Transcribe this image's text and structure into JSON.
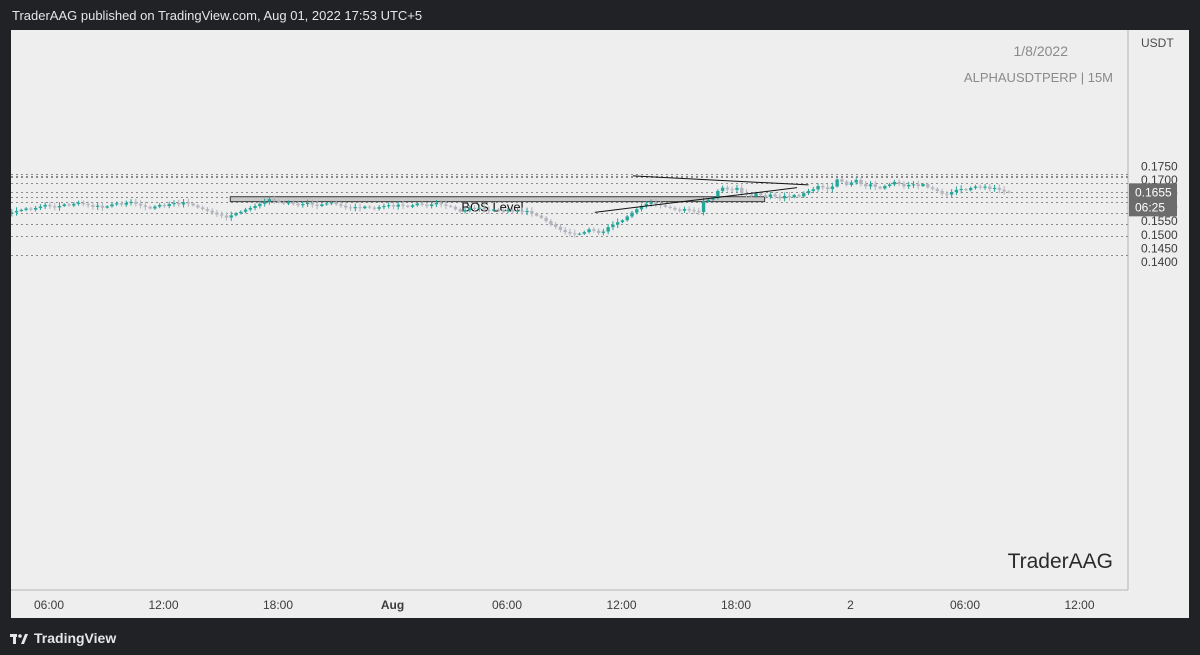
{
  "header": {
    "published_text": "TraderAAG published on TradingView.com, Aug 01, 2022 17:53 UTC+5"
  },
  "footer": {
    "brand": "TradingView"
  },
  "colors": {
    "up": "#26a69a",
    "down": "#b2b5be",
    "background": "#eeeeee",
    "frame": "#202226",
    "grid": "#8a8a8a",
    "bos_box": "#c8c8c8",
    "price_tag": "#6c6c6c"
  },
  "chart_data": {
    "type": "candlestick",
    "symbol_line": "ALPHAUSDTPERP | 15M",
    "date_line": "1/8/2022",
    "watermark": "TraderAAG",
    "axis_currency": "USDT",
    "ylim": [
      0.14,
      0.173
    ],
    "y_ticks": [
      "0.1750",
      "0.1700",
      "0.1650",
      "0.1600",
      "0.1550",
      "0.1500",
      "0.1450",
      "0.1400"
    ],
    "x_ticks": [
      "06:00",
      "12:00",
      "18:00",
      "Aug",
      "06:00",
      "12:00",
      "18:00",
      "2",
      "06:00",
      "12:00"
    ],
    "x_tick_hours": [
      6,
      12,
      18,
      24,
      30,
      36,
      42,
      48,
      54,
      60
    ],
    "start_hour": 2.3,
    "bar_hours": 0.25,
    "last_price": "0.1655",
    "countdown": "06:25",
    "bos_label": "BOS Level",
    "bos_zone": {
      "top": 0.1639,
      "bottom": 0.1621,
      "from_hour": 15.5,
      "to_hour": 43.5
    },
    "levels": [
      0.1723,
      0.1715,
      0.171,
      0.169,
      0.1655,
      0.1639,
      0.1621,
      0.158,
      0.154,
      0.1497,
      0.1427
    ],
    "triangle": [
      {
        "from_hour": 34.6,
        "from_price": 0.1582,
        "to_hour": 45.2,
        "to_price": 0.1672
      },
      {
        "from_hour": 36.6,
        "from_price": 0.1715,
        "to_hour": 45.8,
        "to_price": 0.1682
      }
    ],
    "close": [
      0.1551,
      0.1536,
      0.1543,
      0.1555,
      0.1568,
      0.1574,
      0.1578,
      0.1582,
      0.1587,
      0.1591,
      0.1596,
      0.1592,
      0.1598,
      0.1603,
      0.1609,
      0.1604,
      0.16,
      0.1605,
      0.1611,
      0.1607,
      0.1613,
      0.1617,
      0.1612,
      0.1608,
      0.1602,
      0.1606,
      0.1599,
      0.1604,
      0.1611,
      0.1615,
      0.161,
      0.1616,
      0.162,
      0.1613,
      0.1607,
      0.1602,
      0.1596,
      0.1603,
      0.1609,
      0.1605,
      0.1612,
      0.1616,
      0.1611,
      0.1618,
      0.1614,
      0.1607,
      0.16,
      0.1594,
      0.1588,
      0.1581,
      0.1574,
      0.157,
      0.1563,
      0.1571,
      0.1579,
      0.1584,
      0.1592,
      0.1598,
      0.1605,
      0.1613,
      0.1621,
      0.163,
      0.1625,
      0.1618,
      0.1614,
      0.1619,
      0.1613,
      0.1608,
      0.1612,
      0.1617,
      0.161,
      0.1605,
      0.1611,
      0.1614,
      0.1618,
      0.1612,
      0.1606,
      0.16,
      0.1597,
      0.1601,
      0.1597,
      0.1603,
      0.1599,
      0.1595,
      0.1601,
      0.1605,
      0.1608,
      0.1603,
      0.161,
      0.1606,
      0.1602,
      0.1608,
      0.1614,
      0.161,
      0.1605,
      0.1611,
      0.1616,
      0.1611,
      0.1606,
      0.1602,
      0.1593,
      0.1585,
      0.159,
      0.1598,
      0.1595,
      0.1599,
      0.1592,
      0.1588,
      0.1593,
      0.159,
      0.1586,
      0.159,
      0.1585,
      0.1588,
      0.1583,
      0.1587,
      0.1578,
      0.157,
      0.1562,
      0.155,
      0.1538,
      0.1529,
      0.1518,
      0.151,
      0.1505,
      0.1502,
      0.1504,
      0.151,
      0.152,
      0.1515,
      0.1507,
      0.1512,
      0.1528,
      0.1537,
      0.1546,
      0.1553,
      0.1567,
      0.1581,
      0.1593,
      0.1605,
      0.1613,
      0.1618,
      0.1612,
      0.1608,
      0.1602,
      0.1598,
      0.1592,
      0.1588,
      0.1594,
      0.159,
      0.1586,
      0.1583,
      0.1622,
      0.1628,
      0.1634,
      0.166,
      0.1672,
      0.1666,
      0.1664,
      0.1671,
      0.1653,
      0.1647,
      0.164,
      0.1652,
      0.1645,
      0.1638,
      0.1647,
      0.164,
      0.1633,
      0.1642,
      0.1637,
      0.1645,
      0.164,
      0.1652,
      0.166,
      0.1666,
      0.1678,
      0.1673,
      0.1667,
      0.1676,
      0.1702,
      0.1694,
      0.1682,
      0.1691,
      0.17,
      0.1685,
      0.1677,
      0.1684,
      0.1675,
      0.1669,
      0.1678,
      0.1684,
      0.1693,
      0.1686,
      0.1677,
      0.1682,
      0.1684,
      0.1678,
      0.1685,
      0.1673,
      0.1667,
      0.166,
      0.165,
      0.1647,
      0.1656,
      0.1664,
      0.1667,
      0.1663,
      0.1671,
      0.1676,
      0.1672,
      0.1676,
      0.1667,
      0.1671,
      0.1664,
      0.1658,
      0.1655
    ]
  }
}
